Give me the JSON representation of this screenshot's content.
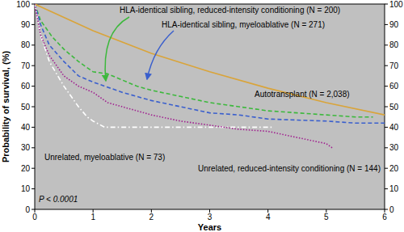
{
  "chart_data": {
    "type": "line",
    "xlabel": "Years",
    "ylabel": "Probability of survival, (%)",
    "xlim": [
      0,
      6
    ],
    "xticks": [
      0,
      1,
      2,
      3,
      4,
      5,
      6
    ],
    "ylim": [
      0,
      100
    ],
    "yticks": [
      0,
      10,
      20,
      30,
      40,
      50,
      60,
      70,
      80,
      90,
      100
    ],
    "y2lim": [
      0,
      100
    ],
    "y2ticks": [
      0,
      10,
      20,
      30,
      40,
      50,
      60,
      70,
      80,
      90,
      100
    ],
    "grid": false,
    "annotations": [
      "P < 0.0001"
    ],
    "series": [
      {
        "name": "HLA-identical sibling, reduced-intensity conditioning (N = 200)",
        "color": "#3cb83c",
        "line_style": "dashed",
        "x": [
          0,
          0.1,
          0.3,
          0.5,
          0.75,
          1,
          1.25,
          1.5,
          1.75,
          2,
          2.5,
          3,
          3.5,
          4,
          4.5,
          5,
          5.5,
          5.8
        ],
        "values": [
          100,
          92,
          84,
          78,
          72,
          67,
          66,
          63,
          60,
          58,
          55,
          52,
          50,
          48,
          47,
          46,
          45,
          45
        ]
      },
      {
        "name": "HLA-identical sibling, myeloablative (N = 271)",
        "color": "#3a5fcd",
        "line_style": "dashed",
        "x": [
          0,
          0.1,
          0.25,
          0.5,
          0.75,
          1,
          1.5,
          2,
          2.5,
          3,
          3.5,
          4,
          5,
          5.5,
          6
        ],
        "values": [
          100,
          90,
          80,
          72,
          65,
          62,
          57,
          53,
          50,
          47,
          46,
          44,
          43,
          42,
          42
        ]
      },
      {
        "name": "Autotransplant (N = 2,038)",
        "color": "#d9a43a",
        "line_style": "solid",
        "x": [
          0,
          1,
          2,
          3,
          4,
          5,
          6
        ],
        "values": [
          100,
          87,
          76,
          67,
          59,
          52,
          46
        ]
      },
      {
        "name": "Unrelated, myeloablative (N = 73)",
        "color": "#ffffff",
        "line_style": "dash-dot",
        "x": [
          0,
          0.1,
          0.25,
          0.5,
          0.75,
          0.9,
          1,
          1.2,
          1.5,
          2,
          3,
          4,
          4.1
        ],
        "values": [
          100,
          85,
          72,
          60,
          50,
          45,
          43,
          40,
          40,
          40,
          40,
          40,
          40
        ]
      },
      {
        "name": "Unrelated, reduced-intensity conditioning (N = 144)",
        "color": "#a0208f",
        "line_style": "dotted",
        "x": [
          0,
          0.1,
          0.25,
          0.5,
          0.75,
          1,
          1.25,
          1.5,
          2,
          2.5,
          3,
          3.5,
          4,
          4.5,
          5,
          5.1
        ],
        "values": [
          100,
          85,
          75,
          65,
          60,
          57,
          52,
          50,
          46,
          43,
          41,
          39,
          38,
          35,
          32,
          30
        ]
      }
    ]
  }
}
